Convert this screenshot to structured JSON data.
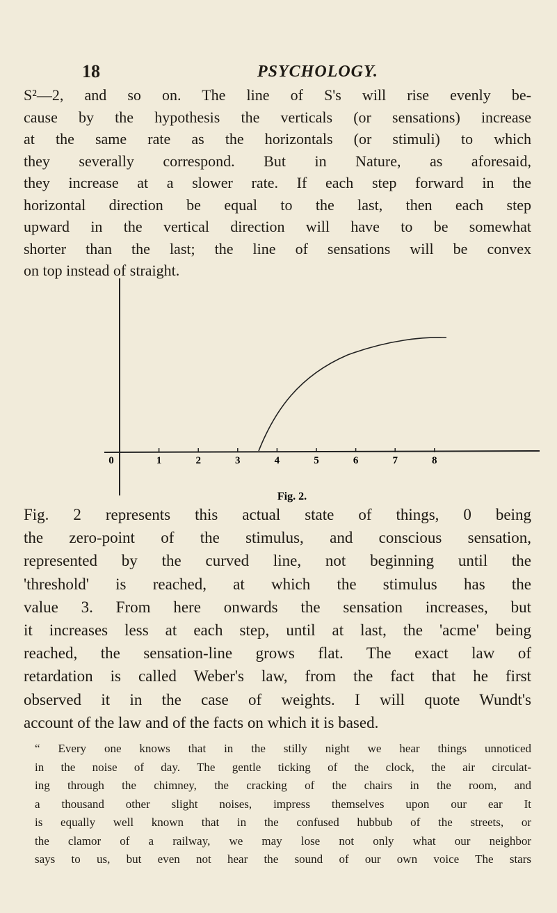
{
  "header": {
    "page_number": "18",
    "running_title": "PSYCHOLOGY."
  },
  "paragraph_1": [
    "S²—2, and so on. The line of S's will rise evenly be-",
    "cause by the hypothesis the verticals (or sensations) increase",
    "at the same rate as the horizontals (or stimuli) to which",
    "they severally correspond. But in Nature, as aforesaid,",
    "they increase at a slower rate. If each step forward in the",
    "horizontal direction be equal to the last, then each step",
    "upward in the vertical direction will have to be somewhat",
    "shorter than the last; the line of sensations will be convex",
    "on top instead of straight."
  ],
  "figure": {
    "tick_labels": [
      "0",
      "1",
      "2",
      "3",
      "4",
      "5",
      "6",
      "7",
      "8"
    ],
    "caption": "Fig. 2."
  },
  "paragraph_2": [
    "Fig. 2 represents this actual state of things, 0 being",
    "the zero-point of the stimulus, and conscious sensation,",
    "represented by the curved line, not beginning until the",
    "'threshold' is reached, at which the stimulus has the",
    "value 3. From here onwards the sensation increases, but",
    "it increases less at each step, until at last, the 'acme' being",
    "reached, the sensation-line grows flat. The exact law of",
    "retardation is called Weber's law, from the fact that he first",
    "observed it in the case of weights. I will quote Wundt's",
    "account of the law and of the facts on which it is based."
  ],
  "quote": [
    "“ Every one knows that in the stilly night we hear things unnoticed",
    "in the noise of day. The gentle ticking of the clock, the air circulat-",
    "ing through the chimney, the cracking of the chairs in the room, and",
    "a thousand other slight noises, impress themselves upon our ear It",
    "is equally well known that in the confused hubbub of the streets, or",
    "the clamor of a railway, we may lose not only what our neighbor",
    "says to us, but even not hear the sound of our own voice The stars"
  ]
}
